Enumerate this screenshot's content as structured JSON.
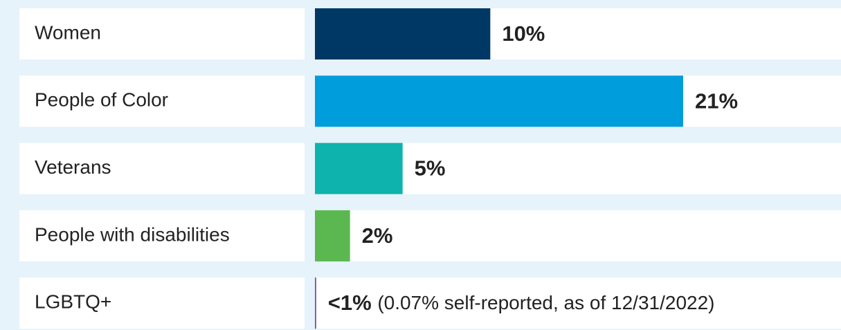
{
  "chart_data": {
    "type": "hbar",
    "categories": [
      "Women",
      "People of Color",
      "Veterans",
      "People with disabilities",
      "LGBTQ+"
    ],
    "values": [
      10,
      21,
      5,
      2,
      0.07
    ],
    "value_labels": [
      "10%",
      "21%",
      "5%",
      "2%",
      "<1%"
    ],
    "colors": [
      "#003865",
      "#009ddc",
      "#0db3ac",
      "#5bb850",
      "#6b4fa5"
    ],
    "annotations": [
      {
        "index": 4,
        "text": "(0.07% self-reported, as of 12/31/2022)"
      }
    ],
    "xlim": [
      0,
      30
    ]
  }
}
